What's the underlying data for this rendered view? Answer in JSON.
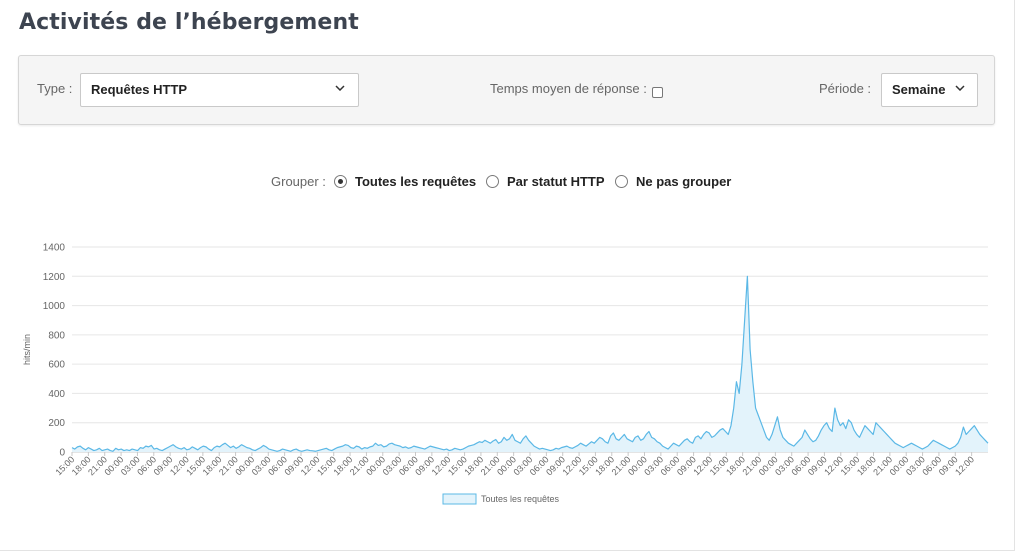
{
  "page": {
    "title": "Activités de l’hébergement"
  },
  "filters": {
    "type_label": "Type :",
    "type_value": "Requêtes HTTP",
    "response_time_label": "Temps moyen de réponse :",
    "response_time_checked": false,
    "period_label": "Période :",
    "period_value": "Semaine"
  },
  "grouping": {
    "label": "Grouper :",
    "options": [
      {
        "label": "Toutes les requêtes",
        "selected": true
      },
      {
        "label": "Par statut HTTP",
        "selected": false
      },
      {
        "label": "Ne pas grouper",
        "selected": false
      }
    ]
  },
  "colors": {
    "series_line": "#5bb8e6",
    "series_fill": "#e3f3fb",
    "grid": "#e6e6e6",
    "text": "#666666"
  },
  "chart_data": {
    "type": "area",
    "title": "",
    "xlabel": "",
    "ylabel": "hits/min",
    "ylim": [
      0,
      1400
    ],
    "yticks": [
      0,
      200,
      400,
      600,
      800,
      1000,
      1200,
      1400
    ],
    "grid": true,
    "legend_position": "bottom",
    "x_tick_labels": [
      "15:00",
      "18:00",
      "21:00",
      "00:00",
      "03:00",
      "06:00",
      "09:00",
      "12:00",
      "15:00",
      "18:00",
      "21:00",
      "00:00",
      "03:00",
      "06:00",
      "09:00",
      "12:00",
      "15:00",
      "18:00",
      "21:00",
      "00:00",
      "03:00",
      "06:00",
      "09:00",
      "12:00",
      "15:00",
      "18:00",
      "21:00",
      "00:00",
      "03:00",
      "06:00",
      "09:00",
      "12:00",
      "15:00",
      "18:00",
      "21:00",
      "00:00",
      "03:00",
      "06:00",
      "09:00",
      "12:00",
      "15:00",
      "18:00",
      "21:00",
      "00:00",
      "03:00",
      "06:00",
      "09:00",
      "12:00",
      "15:00",
      "18:00",
      "21:00",
      "00:00",
      "03:00",
      "06:00",
      "09:00",
      "12:00"
    ],
    "series": [
      {
        "name": "Toutes les requêtes",
        "values": [
          30,
          20,
          35,
          40,
          25,
          15,
          30,
          20,
          10,
          15,
          25,
          10,
          15,
          20,
          10,
          5,
          25,
          15,
          20,
          10,
          15,
          10,
          20,
          15,
          10,
          30,
          25,
          40,
          35,
          45,
          20,
          25,
          15,
          10,
          20,
          30,
          40,
          50,
          35,
          25,
          20,
          30,
          15,
          20,
          35,
          25,
          15,
          30,
          40,
          35,
          20,
          10,
          30,
          40,
          35,
          50,
          60,
          45,
          30,
          40,
          25,
          35,
          50,
          40,
          30,
          25,
          15,
          10,
          20,
          30,
          45,
          35,
          20,
          15,
          10,
          5,
          10,
          20,
          15,
          10,
          5,
          15,
          20,
          10,
          5,
          10,
          15,
          10,
          8,
          5,
          10,
          15,
          20,
          25,
          15,
          10,
          20,
          30,
          35,
          40,
          50,
          45,
          30,
          25,
          40,
          35,
          20,
          30,
          25,
          35,
          40,
          60,
          45,
          50,
          35,
          40,
          55,
          60,
          50,
          45,
          40,
          30,
          35,
          25,
          30,
          40,
          35,
          30,
          25,
          20,
          30,
          40,
          35,
          30,
          25,
          20,
          15,
          20,
          10,
          15,
          25,
          20,
          15,
          20,
          30,
          40,
          45,
          50,
          60,
          70,
          65,
          80,
          70,
          60,
          75,
          85,
          60,
          70,
          100,
          80,
          90,
          120,
          80,
          70,
          60,
          90,
          110,
          80,
          60,
          40,
          30,
          20,
          25,
          20,
          15,
          10,
          15,
          25,
          20,
          30,
          35,
          40,
          30,
          25,
          35,
          45,
          60,
          50,
          40,
          55,
          70,
          60,
          80,
          100,
          90,
          70,
          60,
          110,
          130,
          90,
          80,
          100,
          120,
          90,
          80,
          70,
          100,
          110,
          80,
          90,
          120,
          140,
          100,
          90,
          70,
          60,
          40,
          30,
          20,
          40,
          60,
          50,
          40,
          60,
          80,
          90,
          70,
          60,
          100,
          110,
          90,
          120,
          140,
          130,
          100,
          110,
          130,
          150,
          160,
          140,
          120,
          180,
          300,
          480,
          400,
          600,
          900,
          1200,
          700,
          480,
          300,
          250,
          200,
          150,
          100,
          80,
          120,
          180,
          240,
          150,
          100,
          80,
          60,
          50,
          40,
          60,
          80,
          100,
          150,
          120,
          90,
          70,
          80,
          110,
          150,
          180,
          200,
          160,
          140,
          300,
          220,
          180,
          200,
          160,
          220,
          200,
          150,
          120,
          100,
          140,
          180,
          160,
          140,
          120,
          200,
          180,
          160,
          140,
          120,
          100,
          80,
          60,
          50,
          40,
          30,
          40,
          50,
          60,
          50,
          40,
          30,
          20,
          30,
          40,
          60,
          80,
          70,
          60,
          50,
          40,
          30,
          20,
          30,
          40,
          60,
          100,
          170,
          120,
          140,
          160,
          180,
          150,
          120,
          100,
          80,
          60
        ]
      }
    ]
  }
}
